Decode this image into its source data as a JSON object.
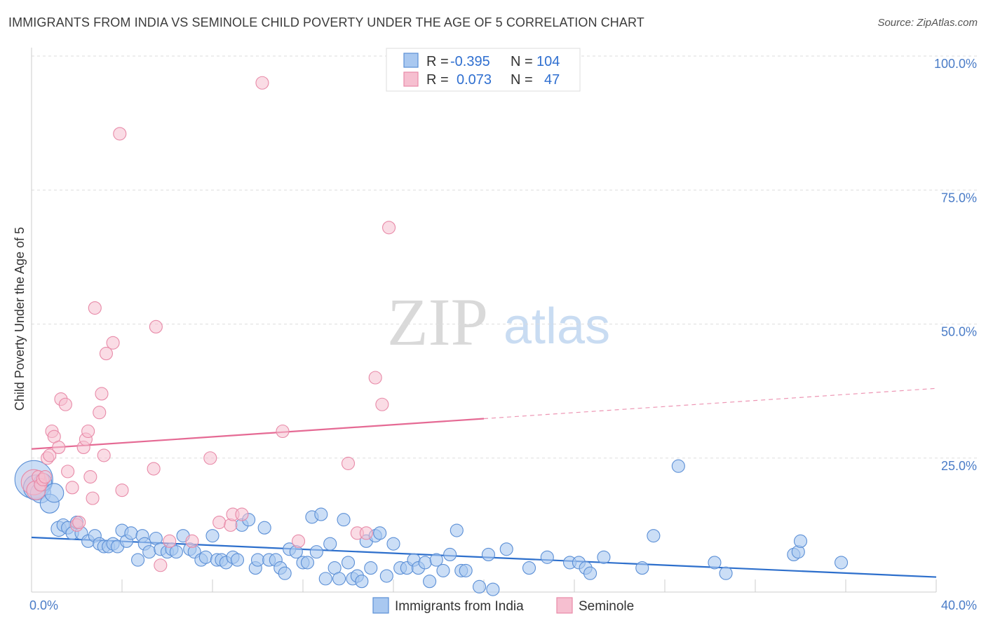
{
  "title": "IMMIGRANTS FROM INDIA VS SEMINOLE CHILD POVERTY UNDER THE AGE OF 5 CORRELATION CHART",
  "source": "Source: ZipAtlas.com",
  "watermark": {
    "zip": "ZIP",
    "atlas": "atlas"
  },
  "colors": {
    "india_fill": "#a9c8f0",
    "india_stroke": "#5b8fd6",
    "india_line": "#2d6fcc",
    "seminole_fill": "#f6bfd0",
    "seminole_stroke": "#e88aa8",
    "seminole_line": "#e56a94",
    "grid": "#dddddd",
    "tick_text": "#4a7cc7"
  },
  "legend": {
    "rows": [
      {
        "r_label": "R =",
        "r_value": "-0.395",
        "n_label": "N =",
        "n_value": "104"
      },
      {
        "r_label": "R =",
        "r_value": "0.073",
        "n_label": "N =",
        "n_value": "47"
      }
    ]
  },
  "chart_data": {
    "type": "scatter",
    "xlabel": "",
    "ylabel": "Child Poverty Under the Age of 5",
    "xlim": [
      0,
      40
    ],
    "ylim": [
      0,
      100
    ],
    "x_tick_labels": [
      "0.0%",
      "40.0%"
    ],
    "y_ticks": [
      25,
      50,
      75,
      100
    ],
    "y_tick_labels": [
      "25.0%",
      "50.0%",
      "75.0%",
      "100.0%"
    ],
    "grid": true,
    "legend_position": "top-center",
    "series": [
      {
        "name": "Immigrants from India",
        "r": -0.395,
        "n": 104,
        "trend": {
          "x": [
            0,
            40
          ],
          "y": [
            10.2,
            2.8
          ],
          "dashed_from": null
        },
        "points": [
          [
            0.1,
            21.0,
            3
          ],
          [
            0.2,
            19.5,
            2
          ],
          [
            0.4,
            18.5,
            1.6
          ],
          [
            0.5,
            20.5,
            1.4
          ],
          [
            0.8,
            16.5,
            1.5
          ],
          [
            1.0,
            18.5,
            1.5
          ],
          [
            1.2,
            11.8,
            1.2
          ],
          [
            1.4,
            12.5,
            1
          ],
          [
            1.6,
            12.0,
            1
          ],
          [
            1.8,
            11.0,
            1
          ],
          [
            2.0,
            13.0,
            1
          ],
          [
            2.2,
            11.0,
            1
          ],
          [
            2.5,
            9.5,
            1
          ],
          [
            2.8,
            10.5,
            1
          ],
          [
            3.0,
            9.0,
            1
          ],
          [
            3.2,
            8.5,
            1
          ],
          [
            3.4,
            8.5,
            1
          ],
          [
            3.6,
            9.0,
            1
          ],
          [
            3.8,
            8.5,
            1
          ],
          [
            4.0,
            11.5,
            1
          ],
          [
            4.2,
            9.5,
            1
          ],
          [
            4.4,
            11.0,
            1
          ],
          [
            4.7,
            6.0,
            1
          ],
          [
            4.9,
            10.5,
            1
          ],
          [
            5.0,
            9.0,
            1
          ],
          [
            5.2,
            7.5,
            1
          ],
          [
            5.5,
            10.0,
            1
          ],
          [
            5.7,
            8.0,
            1
          ],
          [
            6.0,
            7.5,
            1
          ],
          [
            6.2,
            8.0,
            1
          ],
          [
            6.4,
            7.5,
            1
          ],
          [
            6.7,
            10.5,
            1
          ],
          [
            7.0,
            8.0,
            1
          ],
          [
            7.2,
            7.5,
            1
          ],
          [
            7.5,
            6.0,
            1
          ],
          [
            7.7,
            6.5,
            1
          ],
          [
            8.0,
            10.5,
            1
          ],
          [
            8.2,
            6.0,
            1
          ],
          [
            8.4,
            6.0,
            1
          ],
          [
            8.6,
            5.5,
            1
          ],
          [
            8.9,
            6.5,
            1
          ],
          [
            9.1,
            6.0,
            1
          ],
          [
            9.3,
            12.5,
            1
          ],
          [
            9.6,
            13.5,
            1
          ],
          [
            9.9,
            4.5,
            1
          ],
          [
            10.0,
            6.0,
            1
          ],
          [
            10.3,
            12.0,
            1
          ],
          [
            10.5,
            6.0,
            1
          ],
          [
            10.8,
            6.0,
            1
          ],
          [
            11.0,
            4.5,
            1
          ],
          [
            11.2,
            3.5,
            1
          ],
          [
            11.4,
            8.0,
            1
          ],
          [
            11.7,
            7.5,
            1
          ],
          [
            12.0,
            5.5,
            1
          ],
          [
            12.2,
            5.5,
            1
          ],
          [
            12.4,
            14.0,
            1
          ],
          [
            12.6,
            7.5,
            1
          ],
          [
            12.8,
            14.5,
            1
          ],
          [
            13.0,
            2.5,
            1
          ],
          [
            13.2,
            9.0,
            1
          ],
          [
            13.4,
            4.5,
            1
          ],
          [
            13.6,
            2.5,
            1
          ],
          [
            13.8,
            13.5,
            1
          ],
          [
            14.0,
            5.5,
            1
          ],
          [
            14.2,
            2.5,
            1
          ],
          [
            14.4,
            3.0,
            1
          ],
          [
            14.6,
            2.0,
            1
          ],
          [
            14.8,
            9.5,
            1
          ],
          [
            15.2,
            10.5,
            1
          ],
          [
            15.0,
            4.5,
            1
          ],
          [
            15.4,
            11.0,
            1
          ],
          [
            15.7,
            3.0,
            1
          ],
          [
            16.0,
            9.0,
            1
          ],
          [
            16.3,
            4.5,
            1
          ],
          [
            16.6,
            4.5,
            1
          ],
          [
            16.9,
            6.0,
            1
          ],
          [
            17.1,
            4.5,
            1
          ],
          [
            17.4,
            5.5,
            1
          ],
          [
            17.6,
            2.0,
            1
          ],
          [
            17.9,
            6.0,
            1
          ],
          [
            18.2,
            4.0,
            1
          ],
          [
            18.5,
            7.0,
            1
          ],
          [
            18.8,
            11.5,
            1
          ],
          [
            19.0,
            4.0,
            1
          ],
          [
            19.2,
            4.0,
            1
          ],
          [
            19.8,
            1.0,
            1
          ],
          [
            20.2,
            7.0,
            1
          ],
          [
            20.4,
            0.5,
            1
          ],
          [
            21.0,
            8.0,
            1
          ],
          [
            22.0,
            4.5,
            1
          ],
          [
            22.8,
            6.5,
            1
          ],
          [
            23.8,
            5.5,
            1
          ],
          [
            24.2,
            5.5,
            1
          ],
          [
            24.5,
            4.5,
            1
          ],
          [
            24.7,
            3.5,
            1
          ],
          [
            25.3,
            6.5,
            1
          ],
          [
            27.0,
            4.5,
            1
          ],
          [
            27.5,
            10.5,
            1
          ],
          [
            28.6,
            23.5,
            1
          ],
          [
            30.2,
            5.5,
            1
          ],
          [
            30.7,
            3.5,
            1
          ],
          [
            33.7,
            7.0,
            1
          ],
          [
            33.9,
            7.5,
            1
          ],
          [
            34.0,
            9.5,
            1
          ],
          [
            35.8,
            5.5,
            1
          ]
        ]
      },
      {
        "name": "Seminole",
        "r": 0.073,
        "n": 47,
        "trend": {
          "x": [
            0,
            40
          ],
          "y": [
            26.7,
            38.0
          ],
          "dashed_from": 20
        },
        "points": [
          [
            0.1,
            20.5,
            2
          ],
          [
            0.2,
            19.0,
            1.5
          ],
          [
            0.3,
            21.5,
            1
          ],
          [
            0.4,
            20.0,
            1
          ],
          [
            0.5,
            21.0,
            1
          ],
          [
            0.6,
            21.5,
            1
          ],
          [
            0.7,
            25.0,
            1
          ],
          [
            0.8,
            25.5,
            1
          ],
          [
            0.9,
            30.0,
            1
          ],
          [
            1.0,
            29.0,
            1
          ],
          [
            1.2,
            27.0,
            1
          ],
          [
            1.3,
            36.0,
            1
          ],
          [
            1.5,
            35.0,
            1
          ],
          [
            1.6,
            22.5,
            1
          ],
          [
            1.8,
            19.5,
            1
          ],
          [
            2.0,
            12.5,
            1
          ],
          [
            2.1,
            13.0,
            1
          ],
          [
            2.3,
            27.0,
            1
          ],
          [
            2.4,
            28.5,
            1
          ],
          [
            2.5,
            30.0,
            1
          ],
          [
            2.6,
            21.5,
            1
          ],
          [
            2.7,
            17.5,
            1
          ],
          [
            2.8,
            53.0,
            1
          ],
          [
            3.0,
            33.5,
            1
          ],
          [
            3.1,
            37.0,
            1
          ],
          [
            3.2,
            25.5,
            1
          ],
          [
            3.3,
            44.5,
            1
          ],
          [
            3.6,
            46.5,
            1
          ],
          [
            3.9,
            85.5,
            1
          ],
          [
            4.0,
            19.0,
            1
          ],
          [
            5.4,
            23.0,
            1
          ],
          [
            5.5,
            49.5,
            1
          ],
          [
            5.7,
            5.0,
            1
          ],
          [
            6.1,
            9.5,
            1
          ],
          [
            7.1,
            9.5,
            1
          ],
          [
            7.9,
            25.0,
            1
          ],
          [
            8.3,
            13.0,
            1
          ],
          [
            8.8,
            12.5,
            1
          ],
          [
            8.9,
            14.5,
            1
          ],
          [
            9.3,
            14.5,
            1
          ],
          [
            10.2,
            95.0,
            1
          ],
          [
            11.1,
            30.0,
            1
          ],
          [
            11.8,
            9.5,
            1
          ],
          [
            14.0,
            24.0,
            1
          ],
          [
            14.4,
            11.0,
            1
          ],
          [
            14.8,
            11.0,
            1
          ],
          [
            15.2,
            40.0,
            1
          ],
          [
            15.5,
            35.0,
            1
          ],
          [
            15.8,
            68.0,
            1
          ]
        ]
      }
    ]
  },
  "bottom_legend": {
    "items": [
      {
        "label": "Immigrants from India"
      },
      {
        "label": "Seminole"
      }
    ]
  }
}
